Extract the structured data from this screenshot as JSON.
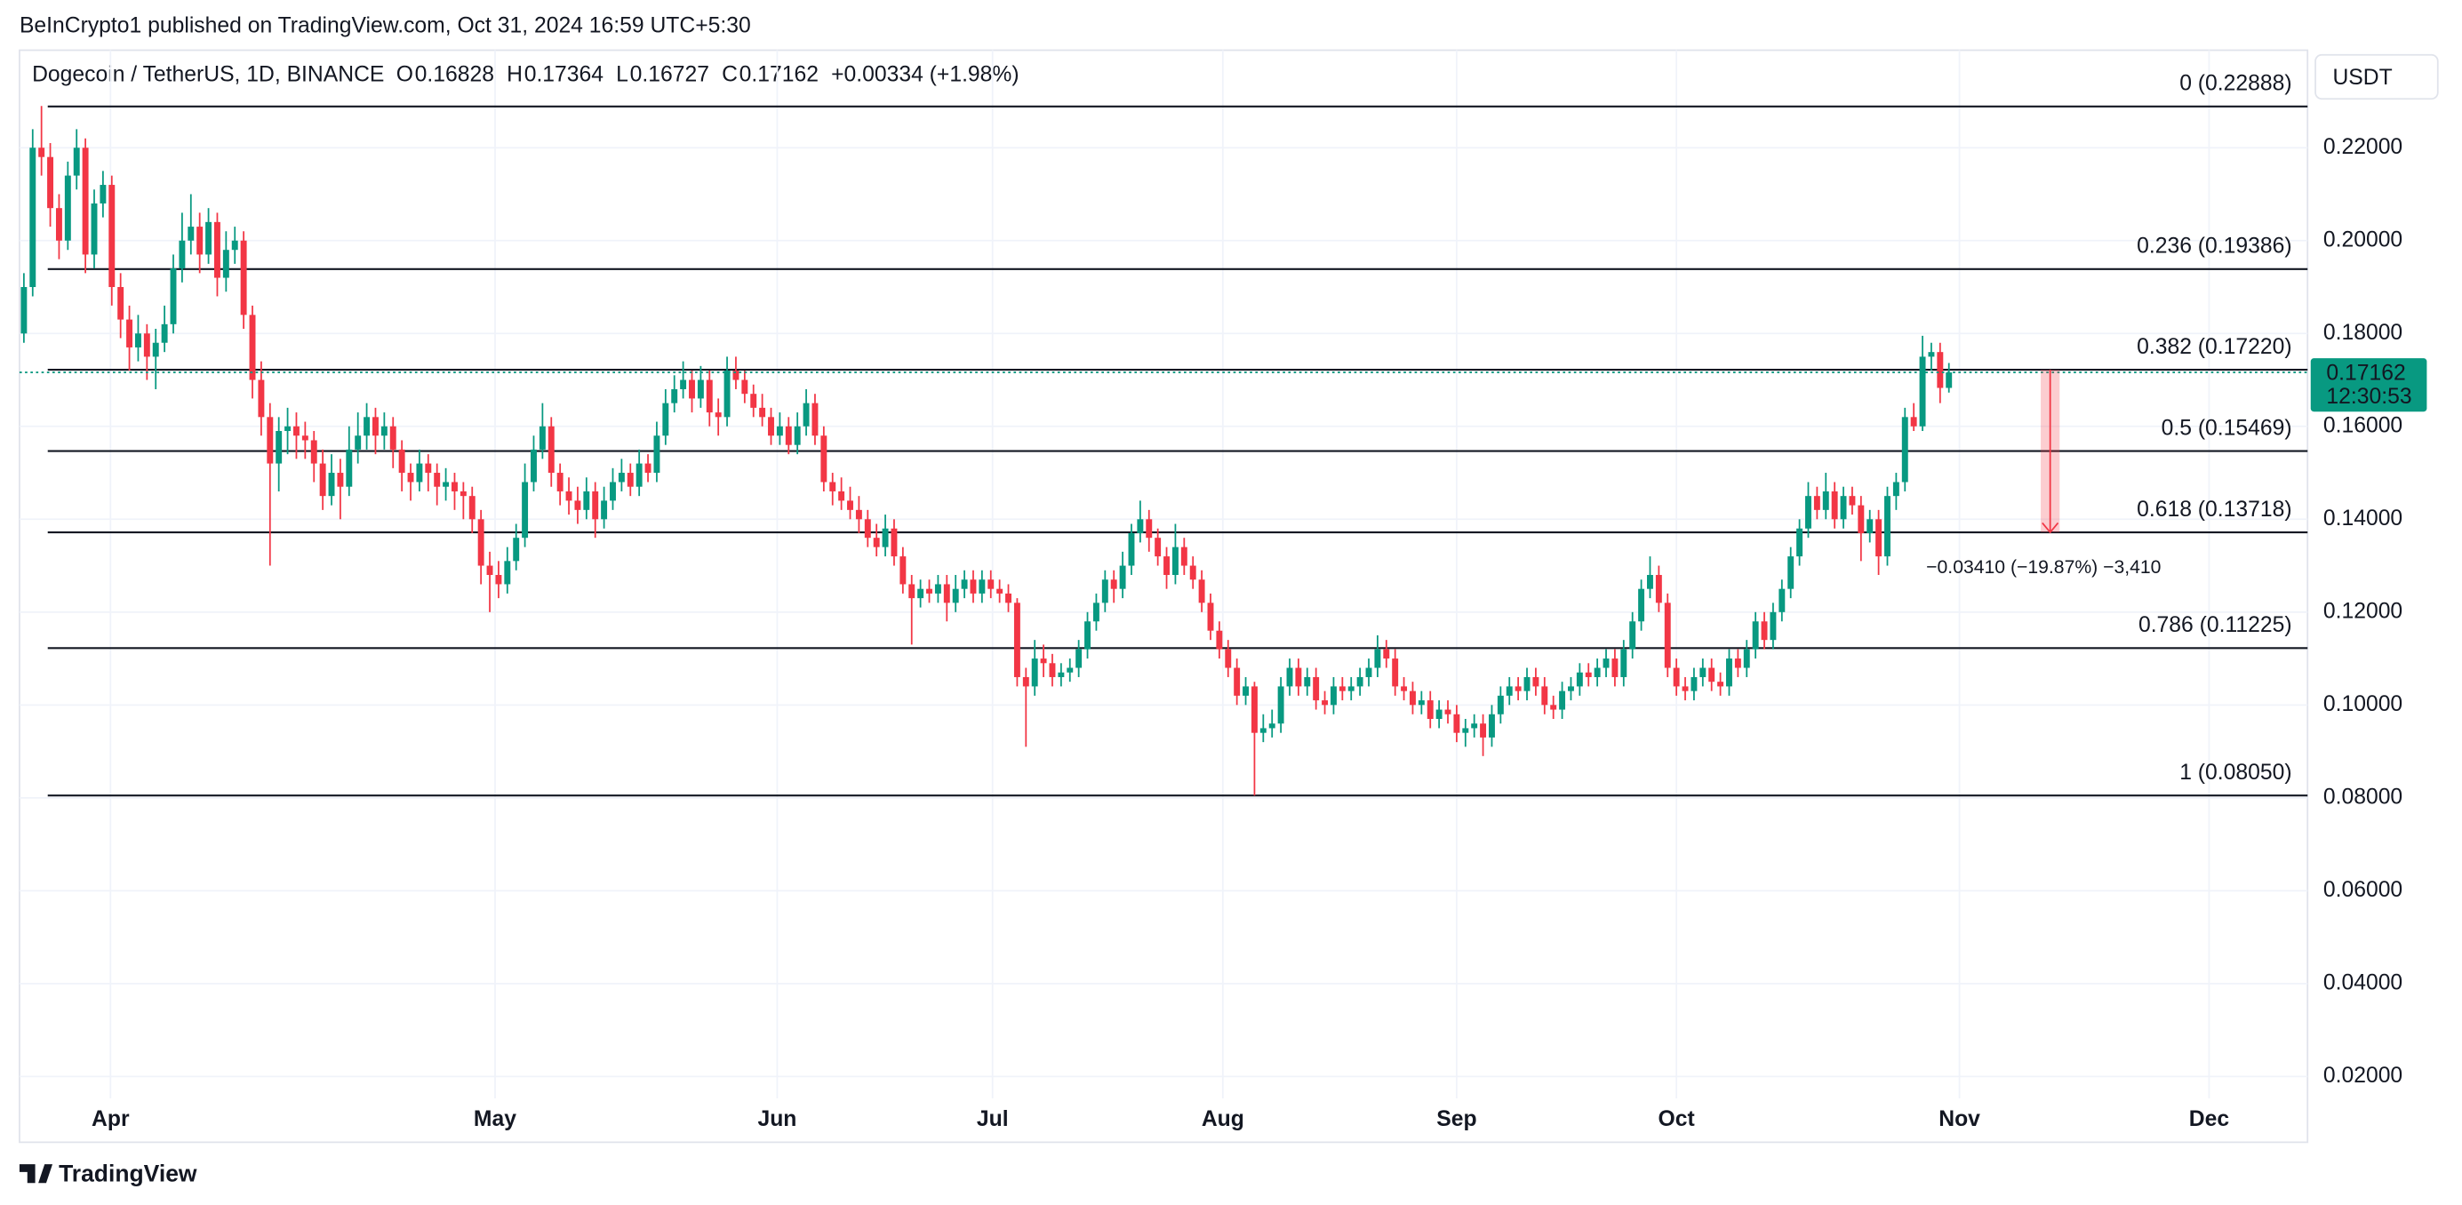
{
  "chart_data": {
    "type": "candlestick",
    "header": "BeInCrypto1 published on TradingView.com, Oct 31, 2024 16:59 UTC+5:30",
    "symbol": "Dogecoin / TetherUS, 1D, BINANCE",
    "legend_keys": [
      "O",
      "H",
      "L",
      "C"
    ],
    "change": "+0.00334 (+1.98%)",
    "currency": "USDT",
    "countdown": "12:30:53",
    "measure_label": "−0.03410 (−19.87%) −3,410",
    "footer": "TradingView",
    "up_color": "#089981",
    "down_color": "#f23645",
    "grid": true,
    "ylim": [
      0.0153,
      0.241
    ],
    "yticks": [
      {
        "value": 0.02,
        "label": "0.02000"
      },
      {
        "value": 0.04,
        "label": "0.04000"
      },
      {
        "value": 0.06,
        "label": "0.06000"
      },
      {
        "value": 0.08,
        "label": "0.08000"
      },
      {
        "value": 0.1,
        "label": "0.10000"
      },
      {
        "value": 0.12,
        "label": "0.12000"
      },
      {
        "value": 0.14,
        "label": "0.14000"
      },
      {
        "value": 0.16,
        "label": "0.16000"
      },
      {
        "value": 0.18,
        "label": "0.18000"
      },
      {
        "value": 0.2,
        "label": "0.20000"
      },
      {
        "value": 0.22,
        "label": "0.22000"
      }
    ],
    "xlim": [
      -0.5,
      259.8
    ],
    "xticks": [
      {
        "value": 9.85,
        "label": "Apr"
      },
      {
        "value": 53.6,
        "label": "May"
      },
      {
        "value": 85.7,
        "label": "Jun"
      },
      {
        "value": 110.2,
        "label": "Jul"
      },
      {
        "value": 136.4,
        "label": "Aug"
      },
      {
        "value": 163.0,
        "label": "Sep"
      },
      {
        "value": 188.0,
        "label": "Oct"
      },
      {
        "value": 220.2,
        "label": "Nov"
      },
      {
        "value": 248.6,
        "label": "Dec"
      }
    ],
    "fib_levels": [
      {
        "value": 0.22888,
        "label": "0 (0.22888)"
      },
      {
        "value": 0.19386,
        "label": "0.236 (0.19386)"
      },
      {
        "value": 0.1722,
        "label": "0.382 (0.17220)"
      },
      {
        "value": 0.15469,
        "label": "0.5 (0.15469)"
      },
      {
        "value": 0.13718,
        "label": "0.618 (0.13718)"
      },
      {
        "value": 0.11225,
        "label": "0.786 (0.11225)"
      },
      {
        "value": 0.0805,
        "label": "1 (0.08050)"
      }
    ],
    "candles": [
      [
        0.18,
        0.193,
        0.178,
        0.19
      ],
      [
        0.19,
        0.224,
        0.188,
        0.22
      ],
      [
        0.22,
        0.229,
        0.214,
        0.218
      ],
      [
        0.218,
        0.221,
        0.203,
        0.207
      ],
      [
        0.207,
        0.21,
        0.196,
        0.2
      ],
      [
        0.2,
        0.217,
        0.198,
        0.214
      ],
      [
        0.214,
        0.224,
        0.211,
        0.22
      ],
      [
        0.22,
        0.222,
        0.193,
        0.197
      ],
      [
        0.197,
        0.211,
        0.194,
        0.208
      ],
      [
        0.208,
        0.215,
        0.205,
        0.212
      ],
      [
        0.212,
        0.214,
        0.186,
        0.19
      ],
      [
        0.19,
        0.193,
        0.179,
        0.183
      ],
      [
        0.183,
        0.186,
        0.172,
        0.177
      ],
      [
        0.177,
        0.184,
        0.174,
        0.18
      ],
      [
        0.18,
        0.182,
        0.17,
        0.175
      ],
      [
        0.175,
        0.181,
        0.168,
        0.178
      ],
      [
        0.178,
        0.186,
        0.176,
        0.182
      ],
      [
        0.182,
        0.197,
        0.18,
        0.194
      ],
      [
        0.194,
        0.206,
        0.191,
        0.2
      ],
      [
        0.2,
        0.21,
        0.197,
        0.203
      ],
      [
        0.203,
        0.206,
        0.193,
        0.197
      ],
      [
        0.197,
        0.207,
        0.195,
        0.204
      ],
      [
        0.204,
        0.206,
        0.188,
        0.192
      ],
      [
        0.192,
        0.202,
        0.189,
        0.198
      ],
      [
        0.198,
        0.203,
        0.195,
        0.2
      ],
      [
        0.2,
        0.202,
        0.181,
        0.184
      ],
      [
        0.184,
        0.186,
        0.166,
        0.17
      ],
      [
        0.17,
        0.174,
        0.158,
        0.162
      ],
      [
        0.162,
        0.165,
        0.13,
        0.152
      ],
      [
        0.152,
        0.162,
        0.146,
        0.159
      ],
      [
        0.159,
        0.164,
        0.154,
        0.16
      ],
      [
        0.16,
        0.163,
        0.153,
        0.158
      ],
      [
        0.158,
        0.161,
        0.153,
        0.157
      ],
      [
        0.157,
        0.159,
        0.148,
        0.152
      ],
      [
        0.152,
        0.155,
        0.142,
        0.145
      ],
      [
        0.145,
        0.154,
        0.143,
        0.15
      ],
      [
        0.15,
        0.153,
        0.14,
        0.147
      ],
      [
        0.147,
        0.16,
        0.145,
        0.155
      ],
      [
        0.155,
        0.163,
        0.152,
        0.158
      ],
      [
        0.158,
        0.165,
        0.155,
        0.162
      ],
      [
        0.162,
        0.164,
        0.154,
        0.158
      ],
      [
        0.158,
        0.163,
        0.155,
        0.16
      ],
      [
        0.16,
        0.162,
        0.151,
        0.155
      ],
      [
        0.155,
        0.157,
        0.146,
        0.15
      ],
      [
        0.15,
        0.152,
        0.144,
        0.148
      ],
      [
        0.148,
        0.155,
        0.146,
        0.152
      ],
      [
        0.152,
        0.154,
        0.146,
        0.15
      ],
      [
        0.15,
        0.152,
        0.143,
        0.147
      ],
      [
        0.147,
        0.151,
        0.144,
        0.148
      ],
      [
        0.148,
        0.15,
        0.142,
        0.146
      ],
      [
        0.146,
        0.148,
        0.14,
        0.145
      ],
      [
        0.145,
        0.147,
        0.137,
        0.14
      ],
      [
        0.14,
        0.142,
        0.126,
        0.13
      ],
      [
        0.13,
        0.133,
        0.12,
        0.128
      ],
      [
        0.128,
        0.131,
        0.123,
        0.126
      ],
      [
        0.126,
        0.134,
        0.124,
        0.131
      ],
      [
        0.131,
        0.139,
        0.129,
        0.136
      ],
      [
        0.136,
        0.152,
        0.134,
        0.148
      ],
      [
        0.148,
        0.158,
        0.146,
        0.155
      ],
      [
        0.155,
        0.165,
        0.153,
        0.16
      ],
      [
        0.16,
        0.162,
        0.147,
        0.15
      ],
      [
        0.15,
        0.152,
        0.143,
        0.146
      ],
      [
        0.146,
        0.149,
        0.141,
        0.144
      ],
      [
        0.144,
        0.147,
        0.139,
        0.142
      ],
      [
        0.142,
        0.149,
        0.14,
        0.146
      ],
      [
        0.146,
        0.148,
        0.136,
        0.14
      ],
      [
        0.14,
        0.147,
        0.138,
        0.144
      ],
      [
        0.144,
        0.151,
        0.142,
        0.148
      ],
      [
        0.148,
        0.153,
        0.146,
        0.15
      ],
      [
        0.15,
        0.152,
        0.145,
        0.147
      ],
      [
        0.147,
        0.155,
        0.145,
        0.152
      ],
      [
        0.152,
        0.154,
        0.148,
        0.15
      ],
      [
        0.15,
        0.161,
        0.148,
        0.158
      ],
      [
        0.158,
        0.168,
        0.156,
        0.165
      ],
      [
        0.165,
        0.171,
        0.163,
        0.168
      ],
      [
        0.168,
        0.174,
        0.166,
        0.17
      ],
      [
        0.17,
        0.172,
        0.163,
        0.166
      ],
      [
        0.166,
        0.173,
        0.164,
        0.17
      ],
      [
        0.17,
        0.172,
        0.16,
        0.163
      ],
      [
        0.163,
        0.166,
        0.158,
        0.162
      ],
      [
        0.162,
        0.175,
        0.16,
        0.172
      ],
      [
        0.172,
        0.175,
        0.168,
        0.17
      ],
      [
        0.17,
        0.172,
        0.165,
        0.167
      ],
      [
        0.167,
        0.169,
        0.162,
        0.164
      ],
      [
        0.164,
        0.167,
        0.16,
        0.162
      ],
      [
        0.162,
        0.164,
        0.156,
        0.158
      ],
      [
        0.158,
        0.163,
        0.156,
        0.16
      ],
      [
        0.16,
        0.162,
        0.154,
        0.156
      ],
      [
        0.156,
        0.163,
        0.154,
        0.16
      ],
      [
        0.16,
        0.168,
        0.158,
        0.165
      ],
      [
        0.165,
        0.167,
        0.156,
        0.158
      ],
      [
        0.158,
        0.16,
        0.146,
        0.148
      ],
      [
        0.148,
        0.15,
        0.143,
        0.146
      ],
      [
        0.146,
        0.149,
        0.142,
        0.144
      ],
      [
        0.144,
        0.147,
        0.14,
        0.142
      ],
      [
        0.142,
        0.145,
        0.137,
        0.14
      ],
      [
        0.14,
        0.142,
        0.134,
        0.136
      ],
      [
        0.136,
        0.139,
        0.132,
        0.134
      ],
      [
        0.134,
        0.141,
        0.132,
        0.138
      ],
      [
        0.138,
        0.14,
        0.13,
        0.132
      ],
      [
        0.132,
        0.134,
        0.124,
        0.126
      ],
      [
        0.126,
        0.128,
        0.113,
        0.123
      ],
      [
        0.123,
        0.127,
        0.121,
        0.125
      ],
      [
        0.125,
        0.127,
        0.122,
        0.124
      ],
      [
        0.124,
        0.128,
        0.122,
        0.126
      ],
      [
        0.126,
        0.128,
        0.118,
        0.122
      ],
      [
        0.122,
        0.128,
        0.12,
        0.125
      ],
      [
        0.125,
        0.129,
        0.123,
        0.127
      ],
      [
        0.127,
        0.129,
        0.122,
        0.124
      ],
      [
        0.124,
        0.129,
        0.122,
        0.127
      ],
      [
        0.127,
        0.129,
        0.123,
        0.125
      ],
      [
        0.125,
        0.127,
        0.122,
        0.124
      ],
      [
        0.124,
        0.126,
        0.12,
        0.122
      ],
      [
        0.122,
        0.123,
        0.104,
        0.106
      ],
      [
        0.106,
        0.108,
        0.091,
        0.104
      ],
      [
        0.104,
        0.114,
        0.102,
        0.11
      ],
      [
        0.11,
        0.113,
        0.106,
        0.109
      ],
      [
        0.109,
        0.111,
        0.104,
        0.106
      ],
      [
        0.106,
        0.109,
        0.104,
        0.107
      ],
      [
        0.107,
        0.11,
        0.105,
        0.108
      ],
      [
        0.108,
        0.114,
        0.106,
        0.112
      ],
      [
        0.112,
        0.12,
        0.11,
        0.118
      ],
      [
        0.118,
        0.124,
        0.116,
        0.122
      ],
      [
        0.122,
        0.129,
        0.12,
        0.127
      ],
      [
        0.127,
        0.129,
        0.122,
        0.125
      ],
      [
        0.125,
        0.133,
        0.123,
        0.13
      ],
      [
        0.13,
        0.139,
        0.128,
        0.137
      ],
      [
        0.137,
        0.144,
        0.135,
        0.14
      ],
      [
        0.14,
        0.142,
        0.133,
        0.136
      ],
      [
        0.136,
        0.138,
        0.13,
        0.132
      ],
      [
        0.132,
        0.134,
        0.125,
        0.128
      ],
      [
        0.128,
        0.139,
        0.126,
        0.134
      ],
      [
        0.134,
        0.136,
        0.128,
        0.13
      ],
      [
        0.13,
        0.132,
        0.125,
        0.127
      ],
      [
        0.127,
        0.129,
        0.12,
        0.122
      ],
      [
        0.122,
        0.124,
        0.114,
        0.116
      ],
      [
        0.116,
        0.118,
        0.11,
        0.112
      ],
      [
        0.112,
        0.114,
        0.106,
        0.108
      ],
      [
        0.108,
        0.11,
        0.1,
        0.102
      ],
      [
        0.102,
        0.106,
        0.1,
        0.104
      ],
      [
        0.104,
        0.105,
        0.0805,
        0.094
      ],
      [
        0.094,
        0.098,
        0.092,
        0.095
      ],
      [
        0.095,
        0.099,
        0.093,
        0.096
      ],
      [
        0.096,
        0.106,
        0.094,
        0.104
      ],
      [
        0.104,
        0.11,
        0.102,
        0.108
      ],
      [
        0.108,
        0.11,
        0.102,
        0.104
      ],
      [
        0.104,
        0.108,
        0.102,
        0.106
      ],
      [
        0.106,
        0.108,
        0.099,
        0.101
      ],
      [
        0.101,
        0.103,
        0.098,
        0.1
      ],
      [
        0.1,
        0.106,
        0.098,
        0.104
      ],
      [
        0.104,
        0.106,
        0.101,
        0.103
      ],
      [
        0.103,
        0.106,
        0.101,
        0.104
      ],
      [
        0.104,
        0.108,
        0.102,
        0.106
      ],
      [
        0.106,
        0.11,
        0.104,
        0.108
      ],
      [
        0.108,
        0.115,
        0.106,
        0.112
      ],
      [
        0.112,
        0.114,
        0.108,
        0.11
      ],
      [
        0.11,
        0.112,
        0.102,
        0.104
      ],
      [
        0.104,
        0.106,
        0.101,
        0.103
      ],
      [
        0.103,
        0.105,
        0.098,
        0.1
      ],
      [
        0.1,
        0.103,
        0.098,
        0.101
      ],
      [
        0.101,
        0.103,
        0.095,
        0.097
      ],
      [
        0.097,
        0.101,
        0.095,
        0.099
      ],
      [
        0.099,
        0.101,
        0.096,
        0.098
      ],
      [
        0.098,
        0.1,
        0.092,
        0.094
      ],
      [
        0.094,
        0.097,
        0.091,
        0.095
      ],
      [
        0.095,
        0.098,
        0.093,
        0.096
      ],
      [
        0.096,
        0.098,
        0.089,
        0.093
      ],
      [
        0.093,
        0.1,
        0.091,
        0.098
      ],
      [
        0.098,
        0.104,
        0.096,
        0.102
      ],
      [
        0.102,
        0.106,
        0.1,
        0.104
      ],
      [
        0.104,
        0.106,
        0.101,
        0.103
      ],
      [
        0.103,
        0.108,
        0.101,
        0.106
      ],
      [
        0.106,
        0.108,
        0.102,
        0.104
      ],
      [
        0.104,
        0.106,
        0.098,
        0.1
      ],
      [
        0.1,
        0.102,
        0.097,
        0.099
      ],
      [
        0.099,
        0.105,
        0.097,
        0.103
      ],
      [
        0.103,
        0.106,
        0.101,
        0.104
      ],
      [
        0.104,
        0.109,
        0.102,
        0.107
      ],
      [
        0.107,
        0.109,
        0.104,
        0.106
      ],
      [
        0.106,
        0.11,
        0.104,
        0.108
      ],
      [
        0.108,
        0.112,
        0.106,
        0.11
      ],
      [
        0.11,
        0.112,
        0.104,
        0.106
      ],
      [
        0.106,
        0.114,
        0.104,
        0.112
      ],
      [
        0.112,
        0.12,
        0.11,
        0.118
      ],
      [
        0.118,
        0.127,
        0.116,
        0.125
      ],
      [
        0.125,
        0.132,
        0.123,
        0.128
      ],
      [
        0.128,
        0.13,
        0.12,
        0.122
      ],
      [
        0.122,
        0.124,
        0.106,
        0.108
      ],
      [
        0.108,
        0.11,
        0.102,
        0.104
      ],
      [
        0.104,
        0.106,
        0.101,
        0.103
      ],
      [
        0.103,
        0.108,
        0.101,
        0.106
      ],
      [
        0.106,
        0.11,
        0.104,
        0.108
      ],
      [
        0.108,
        0.11,
        0.103,
        0.105
      ],
      [
        0.105,
        0.107,
        0.102,
        0.104
      ],
      [
        0.104,
        0.112,
        0.102,
        0.11
      ],
      [
        0.11,
        0.112,
        0.106,
        0.108
      ],
      [
        0.108,
        0.114,
        0.106,
        0.112
      ],
      [
        0.112,
        0.12,
        0.11,
        0.118
      ],
      [
        0.118,
        0.12,
        0.112,
        0.114
      ],
      [
        0.114,
        0.122,
        0.112,
        0.12
      ],
      [
        0.12,
        0.127,
        0.118,
        0.125
      ],
      [
        0.125,
        0.134,
        0.123,
        0.132
      ],
      [
        0.132,
        0.14,
        0.13,
        0.138
      ],
      [
        0.138,
        0.148,
        0.136,
        0.145
      ],
      [
        0.145,
        0.147,
        0.14,
        0.142
      ],
      [
        0.142,
        0.15,
        0.14,
        0.146
      ],
      [
        0.146,
        0.148,
        0.138,
        0.14
      ],
      [
        0.14,
        0.147,
        0.138,
        0.145
      ],
      [
        0.145,
        0.147,
        0.141,
        0.143
      ],
      [
        0.143,
        0.145,
        0.131,
        0.137
      ],
      [
        0.137,
        0.142,
        0.135,
        0.14
      ],
      [
        0.14,
        0.142,
        0.128,
        0.132
      ],
      [
        0.132,
        0.147,
        0.13,
        0.145
      ],
      [
        0.145,
        0.15,
        0.142,
        0.148
      ],
      [
        0.148,
        0.164,
        0.146,
        0.162
      ],
      [
        0.162,
        0.165,
        0.159,
        0.16
      ],
      [
        0.16,
        0.1795,
        0.159,
        0.175
      ],
      [
        0.175,
        0.178,
        0.172,
        0.176
      ],
      [
        0.176,
        0.178,
        0.165,
        0.16828
      ],
      [
        0.16828,
        0.17364,
        0.16727,
        0.17162
      ]
    ]
  }
}
